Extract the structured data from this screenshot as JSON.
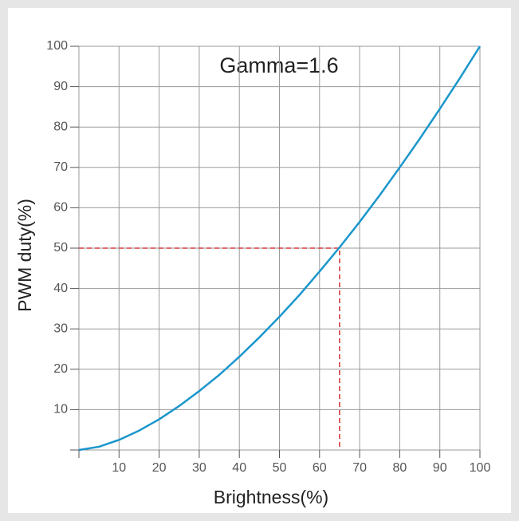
{
  "chart_data": {
    "type": "line",
    "annotation": "Gamma=1.6",
    "x_label": "Brightness(%)",
    "y_label": "PWM duty(%)",
    "x": [
      0,
      5,
      10,
      15,
      20,
      25,
      30,
      35,
      40,
      45,
      50,
      55,
      60,
      65,
      70,
      75,
      80,
      85,
      90,
      95,
      100
    ],
    "series": [
      {
        "color": "#1a96cc",
        "values": [
          0,
          0.8,
          2.5,
          4.8,
          7.6,
          10.9,
          14.6,
          18.6,
          23.1,
          27.9,
          33.0,
          38.4,
          44.2,
          50.2,
          56.5,
          63.1,
          70.0,
          77.1,
          84.5,
          92.1,
          100
        ]
      }
    ],
    "reference": {
      "x": 65,
      "y": 50,
      "color": "#d93a3a"
    },
    "xlim": [
      0,
      100
    ],
    "ylim": [
      0,
      100
    ],
    "xticks": [
      10,
      20,
      30,
      40,
      50,
      60,
      70,
      80,
      90,
      100
    ],
    "yticks": [
      10,
      20,
      30,
      40,
      50,
      60,
      70,
      80,
      90,
      100
    ],
    "grid": true
  }
}
